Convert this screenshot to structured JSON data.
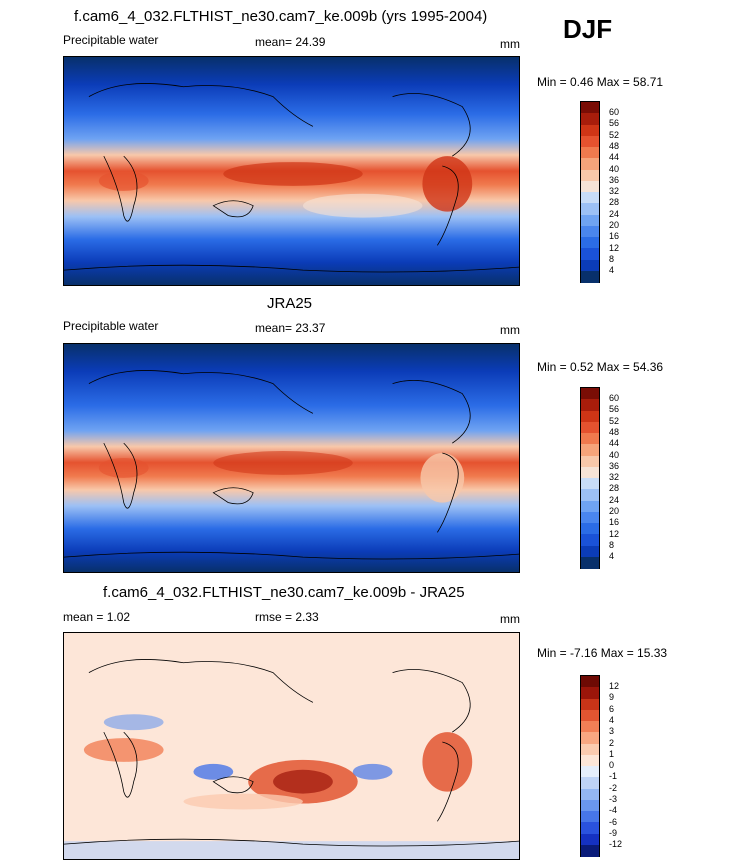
{
  "header": {
    "season": "DJF"
  },
  "panels": [
    {
      "title": "f.cam6_4_032.FLTHIST_ne30.cam7_ke.009b (yrs 1995-2004)",
      "left_label": "Precipitable water",
      "center_label": "mean=  24.39",
      "units": "mm",
      "minmax": "Min =   0.46 Max =  58.71",
      "colorbar_labels": [
        "60",
        "56",
        "52",
        "48",
        "44",
        "40",
        "36",
        "32",
        "28",
        "24",
        "20",
        "16",
        "12",
        "8",
        "4"
      ]
    },
    {
      "title": "JRA25",
      "left_label": "Precipitable water",
      "center_label": "mean=  23.37",
      "units": "mm",
      "minmax": "Min =   0.52 Max =  54.36",
      "colorbar_labels": [
        "60",
        "56",
        "52",
        "48",
        "44",
        "40",
        "36",
        "32",
        "28",
        "24",
        "20",
        "16",
        "12",
        "8",
        "4"
      ]
    },
    {
      "title": "f.cam6_4_032.FLTHIST_ne30.cam7_ke.009b - JRA25",
      "left_label": "mean =   1.02",
      "center_label": "rmse =   2.33",
      "units": "mm",
      "minmax": "Min =  -7.16 Max =  15.33",
      "colorbar_labels": [
        "12",
        "9",
        "6",
        "4",
        "3",
        "2",
        "1",
        "0",
        "-1",
        "-2",
        "-3",
        "-4",
        "-6",
        "-9",
        "-12"
      ]
    }
  ],
  "colors": {
    "sequential": [
      "#08306b",
      "#0b3cb8",
      "#1a52d8",
      "#2b6ce6",
      "#4a86ee",
      "#6fa3f2",
      "#9cc0f5",
      "#c8dcf7",
      "#f6e3d6",
      "#f8c8aa",
      "#f6a47a",
      "#f07a4e",
      "#e5522f",
      "#cf3516",
      "#a81d0b",
      "#7a0d05"
    ],
    "diverging": [
      "#0a1b7a",
      "#1531c2",
      "#2a52de",
      "#4776e8",
      "#6a97ee",
      "#93b7f3",
      "#bfd3f6",
      "#e6eefb",
      "#fde6d8",
      "#fbcbb0",
      "#f8a782",
      "#f17f56",
      "#e25531",
      "#c83418",
      "#9c150a",
      "#6e0a04"
    ]
  }
}
